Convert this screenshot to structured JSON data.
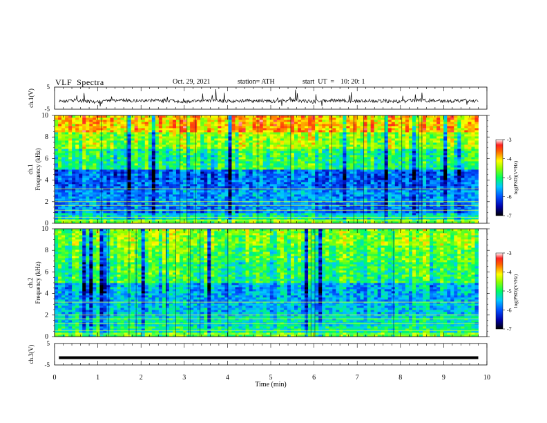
{
  "header": {
    "title": "VLF  Spectra",
    "date": "Oct. 29, 2021",
    "station": "station= ATH",
    "start_label": "start  UT  =",
    "start_time": "10: 20: 1"
  },
  "chart_data": [
    {
      "type": "line",
      "title": "",
      "xlabel": "",
      "ylabel": "ch.1(V)",
      "xlim": [
        0,
        10
      ],
      "ylim": [
        -5,
        5
      ],
      "yticks": [
        "5",
        "-5"
      ],
      "x": [
        0.1,
        0.5,
        1.0,
        1.5,
        2.0,
        2.5,
        3.0,
        3.5,
        4.0,
        4.5,
        5.0,
        5.5,
        6.0,
        6.5,
        7.0,
        7.5,
        8.0,
        8.5,
        9.0,
        9.5,
        9.8
      ],
      "series": [
        {
          "values": [
            -1.5,
            -1.0,
            -1.8,
            -0.8,
            -1.2,
            -1.0,
            -1.5,
            -1.0,
            -1.3,
            -1.1,
            -1.4,
            -0.9,
            -1.6,
            -1.0,
            -1.3,
            -1.2,
            -1.5,
            -0.9,
            -1.4,
            -1.1,
            -1.3
          ]
        }
      ]
    },
    {
      "type": "heatmap",
      "title": "",
      "xlabel": "",
      "ylabel": "Frequency  (kHz)",
      "channel_label": "ch.1",
      "xlim": [
        0,
        10
      ],
      "ylim": [
        0,
        10
      ],
      "yticks": [
        "0",
        "2",
        "4",
        "6",
        "8",
        "10"
      ],
      "colorbar": {
        "label": "log(PSD)(V²/Hz)",
        "ticks": [
          "-3",
          "-4",
          "-5",
          "-6",
          "-7"
        ],
        "range": [
          -7,
          -3
        ]
      },
      "psd_by_band": [
        {
          "freq_khz": [
            0,
            0.4
          ],
          "log_psd": -4.6
        },
        {
          "freq_khz": [
            0.4,
            1.0
          ],
          "log_psd": -5.3
        },
        {
          "freq_khz": [
            1.0,
            2.0
          ],
          "log_psd": -5.8
        },
        {
          "freq_khz": [
            2.0,
            3.0
          ],
          "log_psd": -5.7
        },
        {
          "freq_khz": [
            3.0,
            5.0
          ],
          "log_psd": -5.9
        },
        {
          "freq_khz": [
            5.0,
            7.0
          ],
          "log_psd": -5.0
        },
        {
          "freq_khz": [
            7.0,
            8.5
          ],
          "log_psd": -4.5
        },
        {
          "freq_khz": [
            8.5,
            10.0
          ],
          "log_psd": -3.9
        }
      ]
    },
    {
      "type": "heatmap",
      "title": "",
      "xlabel": "",
      "ylabel": "Frequency  (kHz)",
      "channel_label": "ch.2",
      "xlim": [
        0,
        10
      ],
      "ylim": [
        0,
        10
      ],
      "yticks": [
        "0",
        "2",
        "4",
        "6",
        "8",
        "10"
      ],
      "colorbar": {
        "label": "log(PSD)(V²/Hz)",
        "ticks": [
          "-3",
          "-4",
          "-5",
          "-6",
          "-7"
        ],
        "range": [
          -7,
          -3
        ]
      },
      "psd_by_band": [
        {
          "freq_khz": [
            0,
            0.4
          ],
          "log_psd": -4.7
        },
        {
          "freq_khz": [
            0.4,
            1.0
          ],
          "log_psd": -5.1
        },
        {
          "freq_khz": [
            1.0,
            2.0
          ],
          "log_psd": -5.3
        },
        {
          "freq_khz": [
            2.0,
            3.0
          ],
          "log_psd": -5.5
        },
        {
          "freq_khz": [
            3.0,
            5.0
          ],
          "log_psd": -5.6
        },
        {
          "freq_khz": [
            5.0,
            7.0
          ],
          "log_psd": -5.0
        },
        {
          "freq_khz": [
            7.0,
            8.5
          ],
          "log_psd": -4.8
        },
        {
          "freq_khz": [
            8.5,
            10.0
          ],
          "log_psd": -4.6
        }
      ]
    },
    {
      "type": "line",
      "title": "",
      "xlabel": "Time  (min)",
      "ylabel": "ch.3(V)",
      "xlim": [
        0,
        10
      ],
      "ylim": [
        -5,
        5
      ],
      "yticks": [
        "5",
        "-5"
      ],
      "xticks": [
        "0",
        "1",
        "2",
        "3",
        "4",
        "5",
        "6",
        "7",
        "8",
        "9",
        "10"
      ],
      "x": [
        0.1,
        9.8
      ],
      "series": [
        {
          "values": [
            -1.6,
            -1.6
          ]
        }
      ]
    }
  ]
}
